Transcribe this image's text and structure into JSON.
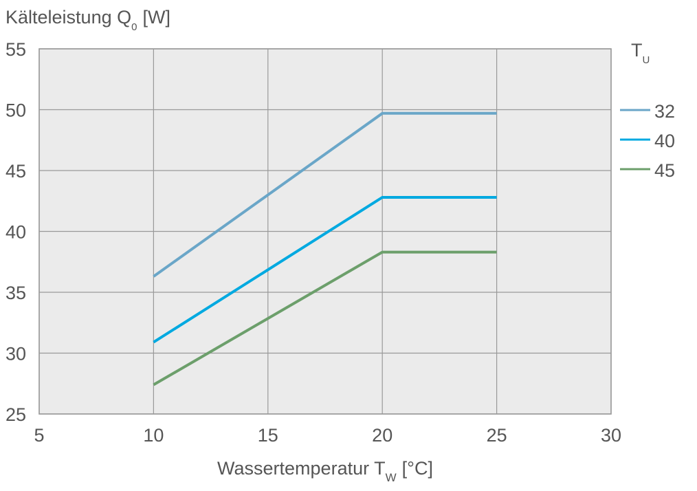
{
  "chart_data": {
    "type": "line",
    "y_title": {
      "main": "Kälteleistung Q",
      "sub": "0",
      "suffix": "[W]"
    },
    "x_title": {
      "main": "Wassertemperatur T",
      "sub": "W",
      "suffix": "[°C]"
    },
    "legend_title": {
      "main": "T",
      "sub": "U"
    },
    "x": [
      10,
      20,
      25
    ],
    "series": [
      {
        "name": "32",
        "color": "#6aa6c8",
        "values": [
          36.3,
          49.7,
          49.7
        ]
      },
      {
        "name": "40",
        "color": "#00a9e0",
        "values": [
          30.9,
          42.8,
          42.8
        ]
      },
      {
        "name": "45",
        "color": "#6c9f6b",
        "values": [
          27.4,
          38.3,
          38.3
        ]
      }
    ],
    "xlim": [
      5,
      30
    ],
    "xticks": [
      5,
      10,
      15,
      20,
      25,
      30
    ],
    "ylim": [
      25,
      55
    ],
    "yticks": [
      25,
      30,
      35,
      40,
      45,
      50,
      55
    ],
    "grid": true,
    "legend": "right"
  }
}
